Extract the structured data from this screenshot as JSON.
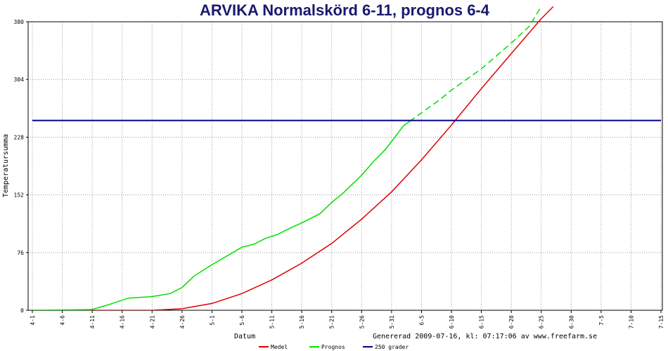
{
  "chart_data": {
    "type": "line",
    "title": "ARVIKA Normalskörd 6-11, prognos 6-4",
    "xlabel": "Datum",
    "ylabel": "Temperatursumma",
    "footer": "Genererad 2009-07-16, kl: 07:17:06 av www.freefarm.se",
    "ylim": [
      0,
      380
    ],
    "yticks": [
      "0",
      "76",
      "152",
      "228",
      "304",
      "380"
    ],
    "xticks": [
      "4-1",
      "4-6",
      "4-11",
      "4-16",
      "4-21",
      "4-26",
      "5-1",
      "5-6",
      "5-11",
      "5-16",
      "5-21",
      "5-26",
      "5-31",
      "6-5",
      "6-10",
      "6-15",
      "6-20",
      "6-25",
      "6-30",
      "7-5",
      "7-10",
      "7-15"
    ],
    "grid": true,
    "legend_position": "bottom",
    "series": [
      {
        "name": "Medel",
        "color": "#e00000",
        "style": "solid",
        "points": [
          [
            "4-1",
            0
          ],
          [
            "4-11",
            0
          ],
          [
            "4-21",
            0
          ],
          [
            "4-26",
            2
          ],
          [
            "5-1",
            9
          ],
          [
            "5-6",
            22
          ],
          [
            "5-11",
            40
          ],
          [
            "5-16",
            62
          ],
          [
            "5-21",
            88
          ],
          [
            "5-26",
            120
          ],
          [
            "5-31",
            156
          ],
          [
            "6-5",
            198
          ],
          [
            "6-10",
            244
          ],
          [
            "6-15",
            292
          ],
          [
            "6-20",
            338
          ],
          [
            "6-25",
            384
          ],
          [
            "6-27",
            400
          ]
        ]
      },
      {
        "name": "Prognos",
        "color": "#00e000",
        "style": "solid-then-dashed",
        "points": [
          [
            "4-1",
            0
          ],
          [
            "4-11",
            1
          ],
          [
            "4-14",
            8
          ],
          [
            "4-17",
            16
          ],
          [
            "4-21",
            18
          ],
          [
            "4-24",
            22
          ],
          [
            "4-26",
            30
          ],
          [
            "4-28",
            45
          ],
          [
            "5-1",
            60
          ],
          [
            "5-6",
            83
          ],
          [
            "5-8",
            87
          ],
          [
            "5-10",
            95
          ],
          [
            "5-12",
            100
          ],
          [
            "5-14",
            108
          ],
          [
            "5-16",
            115
          ],
          [
            "5-19",
            127
          ],
          [
            "5-21",
            142
          ],
          [
            "5-23",
            155
          ],
          [
            "5-26",
            178
          ],
          [
            "5-28",
            196
          ],
          [
            "5-30",
            212
          ],
          [
            "6-2",
            243
          ],
          [
            "6-5",
            260
          ],
          [
            "6-8",
            277
          ],
          [
            "6-10",
            290
          ],
          [
            "6-15",
            318
          ],
          [
            "6-20",
            352
          ],
          [
            "6-23",
            374
          ],
          [
            "6-25",
            400
          ]
        ],
        "dashed_from": "6-3"
      },
      {
        "name": "250 grader",
        "color": "#00008b",
        "style": "solid",
        "points": [
          [
            "4-1",
            250
          ],
          [
            "7-15",
            250
          ]
        ]
      }
    ]
  }
}
